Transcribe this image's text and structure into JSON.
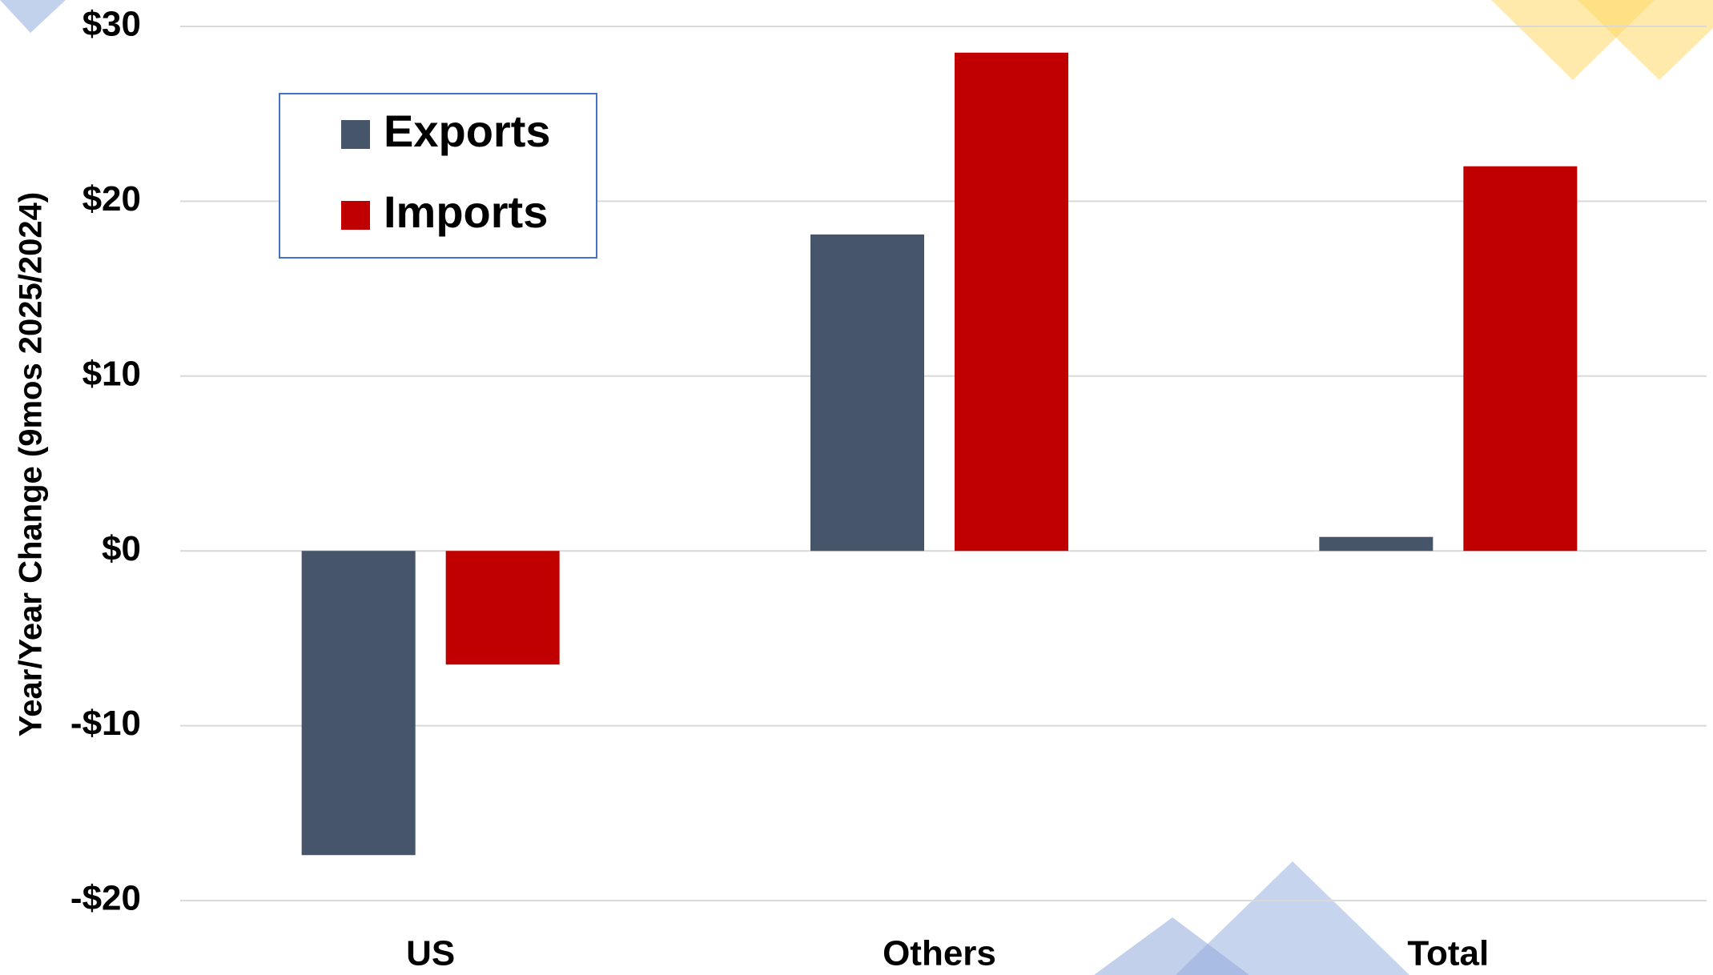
{
  "chart_data": {
    "type": "bar",
    "y_label": "Year/Year Change (9mos 2025/2024)",
    "categories": [
      "US",
      "Others",
      "Total"
    ],
    "series": [
      {
        "name": "Exports",
        "color": "#465569",
        "values": [
          -17.4,
          18.1,
          0.8
        ]
      },
      {
        "name": "Imports",
        "color": "#c00000",
        "values": [
          -6.5,
          28.5,
          22.0
        ]
      }
    ],
    "ylim": [
      -20,
      30
    ],
    "yticks": [
      {
        "value": -20,
        "label": "-$20"
      },
      {
        "value": -10,
        "label": "-$10"
      },
      {
        "value": 0,
        "label": "$0"
      },
      {
        "value": 10,
        "label": "$10"
      },
      {
        "value": 20,
        "label": "$20"
      },
      {
        "value": 30,
        "label": "$30"
      }
    ],
    "grid": true
  }
}
